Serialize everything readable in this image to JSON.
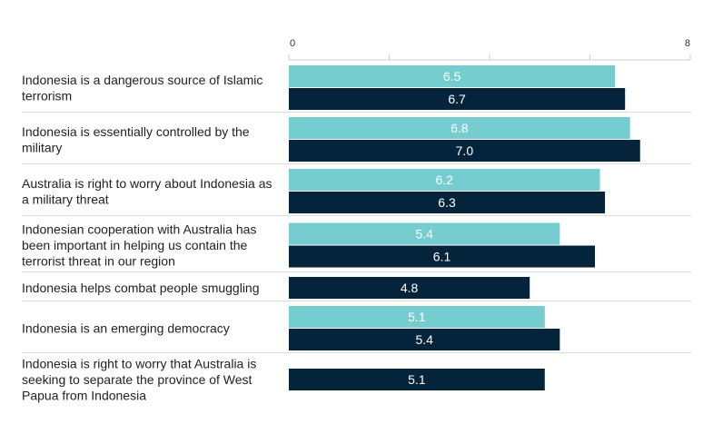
{
  "chart_data": {
    "type": "bar",
    "orientation": "horizontal",
    "xlim": [
      0,
      8
    ],
    "x_ticks": [
      "0",
      "8"
    ],
    "grid": true,
    "colors": {
      "series_a": "#76cdd0",
      "series_b": "#04243c"
    },
    "categories": [
      "Indonesia is a dangerous source of Islamic terrorism",
      "Indonesia is essentially controlled by the military",
      "Australia is right to worry about Indonesia as a military threat",
      "Indonesian cooperation with Australia has been important in helping us contain the terrorist threat in our region",
      "Indonesia helps combat people smuggling",
      "Indonesia is an emerging democracy",
      "Indonesia is right to worry that Australia is seeking to separate the province of West Papua from Indonesia"
    ],
    "series": [
      {
        "values": [
          6.5,
          6.8,
          6.2,
          5.4,
          null,
          5.1,
          null
        ]
      },
      {
        "values": [
          6.7,
          7.0,
          6.3,
          6.1,
          4.8,
          5.4,
          5.1
        ]
      }
    ],
    "label_lines": [
      [
        "Indonesia is a dangerous source of Islamic",
        "terrorism"
      ],
      [
        "Indonesia is essentially controlled by the",
        "military"
      ],
      [
        "Australia is right to worry about Indonesia as",
        "a military threat"
      ],
      [
        "Indonesian cooperation with Australia has",
        "been important in helping us contain the",
        "terrorist threat in our region"
      ],
      [
        "Indonesia helps combat people smuggling"
      ],
      [
        "Indonesia is an emerging democracy"
      ],
      [
        "Indonesia is right to worry that Australia is",
        "seeking to separate the province of West",
        "Papua from Indonesia"
      ]
    ]
  }
}
